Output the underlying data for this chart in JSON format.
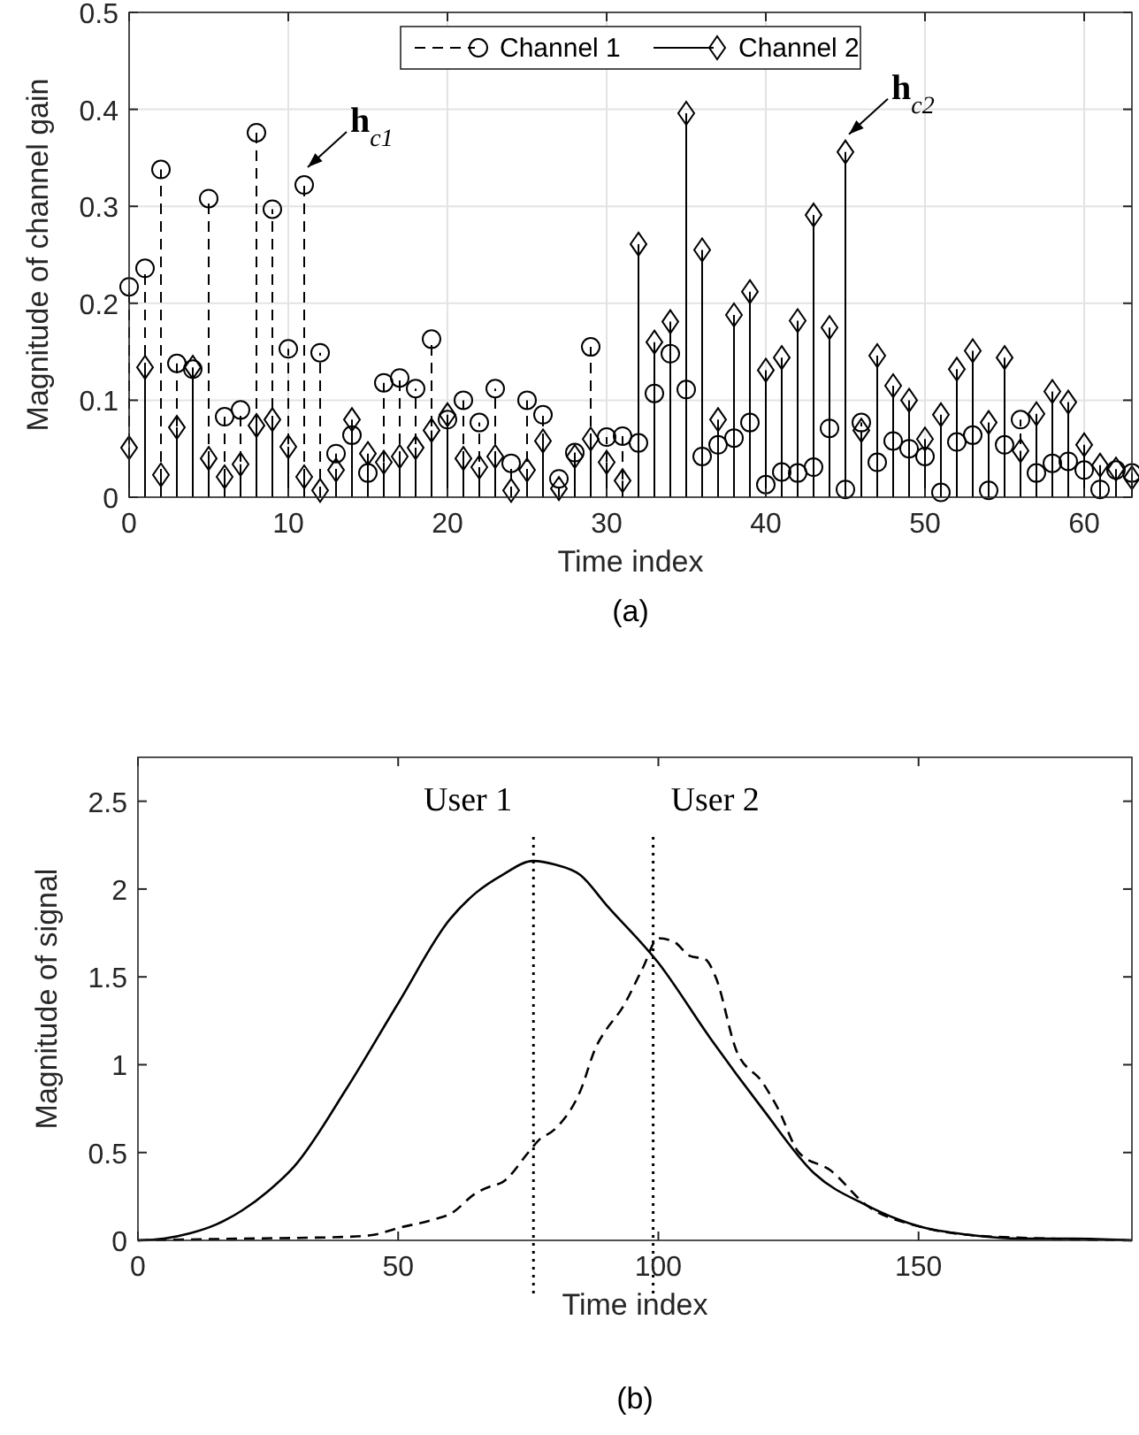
{
  "chart_data": [
    {
      "type": "lollipop",
      "xlabel": "Time index",
      "ylabel": "Magnitude of channel gain",
      "x": [
        0,
        1,
        2,
        3,
        4,
        5,
        6,
        7,
        8,
        9,
        10,
        11,
        12,
        13,
        14,
        15,
        16,
        17,
        18,
        19,
        20,
        21,
        22,
        23,
        24,
        25,
        26,
        27,
        28,
        29,
        30,
        31,
        32,
        33,
        34,
        35,
        36,
        37,
        38,
        39,
        40,
        41,
        42,
        43,
        44,
        45,
        46,
        47,
        48,
        49,
        50,
        51,
        52,
        53,
        54,
        55,
        56,
        57,
        58,
        59,
        60,
        61,
        62,
        63
      ],
      "series": [
        {
          "name": "Channel 1",
          "color": "#000000",
          "marker": "circle",
          "line_style": "dashed",
          "values": [
            0.217,
            0.236,
            0.338,
            0.138,
            0.132,
            0.308,
            0.083,
            0.09,
            0.376,
            0.297,
            0.153,
            0.322,
            0.149,
            0.045,
            0.064,
            0.025,
            0.118,
            0.123,
            0.112,
            0.163,
            0.08,
            0.1,
            0.077,
            0.112,
            0.035,
            0.1,
            0.085,
            0.019,
            0.046,
            0.155,
            0.062,
            0.063,
            0.056,
            0.107,
            0.148,
            0.111,
            0.042,
            0.054,
            0.061,
            0.077,
            0.013,
            0.026,
            0.025,
            0.031,
            0.071,
            0.008,
            0.077,
            0.036,
            0.058,
            0.05,
            0.042,
            0.005,
            0.057,
            0.064,
            0.007,
            0.054,
            0.08,
            0.025,
            0.035,
            0.037,
            0.028,
            0.008,
            0.028,
            0.025
          ]
        },
        {
          "name": "Channel 2",
          "color": "#000000",
          "marker": "diamond",
          "line_style": "solid",
          "values": [
            0.051,
            0.134,
            0.023,
            0.072,
            0.134,
            0.04,
            0.021,
            0.034,
            0.074,
            0.08,
            0.052,
            0.021,
            0.007,
            0.028,
            0.08,
            0.045,
            0.036,
            0.042,
            0.051,
            0.069,
            0.085,
            0.04,
            0.031,
            0.042,
            0.007,
            0.028,
            0.058,
            0.009,
            0.042,
            0.06,
            0.036,
            0.017,
            0.261,
            0.16,
            0.181,
            0.396,
            0.255,
            0.08,
            0.188,
            0.212,
            0.131,
            0.144,
            0.182,
            0.291,
            0.175,
            0.356,
            0.069,
            0.146,
            0.115,
            0.1,
            0.06,
            0.085,
            0.132,
            0.151,
            0.077,
            0.144,
            0.048,
            0.086,
            0.109,
            0.098,
            0.054,
            0.033,
            0.029,
            0.02
          ]
        }
      ],
      "xlim": [
        0,
        63
      ],
      "ylim": [
        0,
        0.5
      ],
      "xticks": [
        0,
        10,
        20,
        30,
        40,
        50,
        60
      ],
      "yticks": [
        0,
        0.1,
        0.2,
        0.3,
        0.4,
        0.5
      ],
      "grid": true,
      "legend": "top",
      "annotations": [
        {
          "text": "h$_{c1}$",
          "x": 11,
          "y": 0.322
        },
        {
          "text": "h$_{c2}$",
          "x": 45,
          "y": 0.356
        },
        "(a)"
      ]
    },
    {
      "type": "line",
      "xlabel": "Time index",
      "ylabel": "Magnitude of signal",
      "xlim": [
        0,
        191
      ],
      "ylim": [
        0,
        2.75
      ],
      "xticks": [
        0,
        50,
        100,
        150
      ],
      "yticks": [
        0,
        0.5,
        1,
        1.5,
        2,
        2.5
      ],
      "grid": false,
      "series": [
        {
          "color": "#000000",
          "line_style": "solid",
          "x": [
            0,
            5,
            10,
            15,
            20,
            25,
            30,
            40,
            50,
            60,
            65,
            70,
            76,
            80,
            85,
            90,
            100,
            110,
            120,
            130,
            140,
            150,
            160,
            170,
            180,
            191
          ],
          "values": [
            0,
            0.01,
            0.04,
            0.09,
            0.17,
            0.28,
            0.42,
            0.86,
            1.35,
            1.83,
            1.98,
            2.08,
            2.16,
            2.14,
            2.08,
            1.91,
            1.58,
            1.15,
            0.75,
            0.38,
            0.2,
            0.08,
            0.03,
            0.01,
            0.01,
            0
          ]
        },
        {
          "color": "#000000",
          "line_style": "dashed",
          "x": [
            0,
            20,
            40,
            45,
            50,
            57,
            60,
            65,
            68,
            70,
            75,
            77,
            80,
            85,
            88,
            90,
            93,
            97,
            100,
            103,
            106,
            109,
            111,
            115,
            120,
            123,
            127,
            133,
            140,
            150,
            160,
            175,
            191
          ],
          "values": [
            0,
            0.01,
            0.02,
            0.03,
            0.07,
            0.12,
            0.15,
            0.27,
            0.31,
            0.33,
            0.5,
            0.57,
            0.63,
            0.85,
            1.1,
            1.2,
            1.32,
            1.55,
            1.72,
            1.7,
            1.62,
            1.6,
            1.5,
            1.08,
            0.9,
            0.75,
            0.5,
            0.4,
            0.2,
            0.08,
            0.03,
            0.01,
            0
          ]
        }
      ],
      "ref_lines": [
        {
          "axis": "x",
          "value": 76,
          "label": "User 1",
          "line_style": "dotted"
        },
        {
          "axis": "x",
          "value": 99,
          "label": "User 2",
          "line_style": "dotted"
        }
      ],
      "annotations": [
        "(b)"
      ]
    }
  ]
}
